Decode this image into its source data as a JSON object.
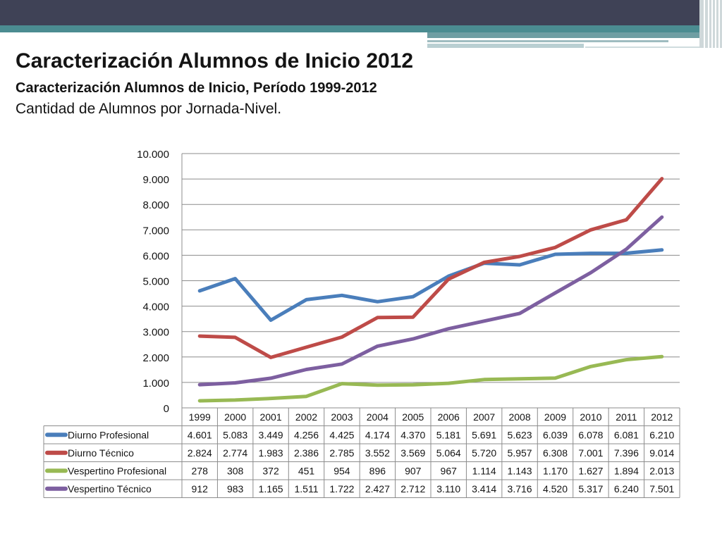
{
  "slide": {
    "title": "Caracterización Alumnos de Inicio 2012",
    "subtitle": "Caracterización Alumnos de Inicio, Período 1999-2012",
    "caption": "Cantidad de Alumnos por Jornada-Nivel."
  },
  "chart_data": {
    "type": "line",
    "title": "",
    "xlabel": "",
    "ylabel": "",
    "x": [
      "1999",
      "2000",
      "2001",
      "2002",
      "2003",
      "2004",
      "2005",
      "2006",
      "2007",
      "2008",
      "2009",
      "2010",
      "2011",
      "2012"
    ],
    "ylim": [
      0,
      10000
    ],
    "ytick_values": [
      0,
      1000,
      2000,
      3000,
      4000,
      5000,
      6000,
      7000,
      8000,
      9000,
      10000
    ],
    "ytick_labels": [
      "0",
      "1.000",
      "2.000",
      "3.000",
      "4.000",
      "5.000",
      "6.000",
      "7.000",
      "8.000",
      "9.000",
      "10.000"
    ],
    "grid": true,
    "legend": "data-table",
    "series": [
      {
        "name": "Diurno Profesional",
        "color": "#4a7ebb",
        "values": [
          4601,
          5083,
          3449,
          4256,
          4425,
          4174,
          4370,
          5181,
          5691,
          5623,
          6039,
          6078,
          6081,
          6210
        ],
        "labels": [
          "4.601",
          "5.083",
          "3.449",
          "4.256",
          "4.425",
          "4.174",
          "4.370",
          "5.181",
          "5.691",
          "5.623",
          "6.039",
          "6.078",
          "6.081",
          "6.210"
        ]
      },
      {
        "name": "Diurno Técnico",
        "color": "#be4b48",
        "values": [
          2824,
          2774,
          1983,
          2386,
          2785,
          3552,
          3569,
          5064,
          5720,
          5957,
          6308,
          7001,
          7396,
          9014
        ],
        "labels": [
          "2.824",
          "2.774",
          "1.983",
          "2.386",
          "2.785",
          "3.552",
          "3.569",
          "5.064",
          "5.720",
          "5.957",
          "6.308",
          "7.001",
          "7.396",
          "9.014"
        ]
      },
      {
        "name": "Vespertino Profesional",
        "color": "#98b954",
        "values": [
          278,
          308,
          372,
          451,
          954,
          896,
          907,
          967,
          1114,
          1143,
          1170,
          1627,
          1894,
          2013
        ],
        "labels": [
          "278",
          "308",
          "372",
          "451",
          "954",
          "896",
          "907",
          "967",
          "1.114",
          "1.143",
          "1.170",
          "1.627",
          "1.894",
          "2.013"
        ]
      },
      {
        "name": "Vespertino Técnico",
        "color": "#7d5fa0",
        "values": [
          912,
          983,
          1165,
          1511,
          1722,
          2427,
          2712,
          3110,
          3414,
          3716,
          4520,
          5317,
          6240,
          7501
        ],
        "labels": [
          "912",
          "983",
          "1.165",
          "1.511",
          "1.722",
          "2.427",
          "2.712",
          "3.110",
          "3.414",
          "3.716",
          "4.520",
          "5.317",
          "6.240",
          "7.501"
        ]
      }
    ]
  }
}
